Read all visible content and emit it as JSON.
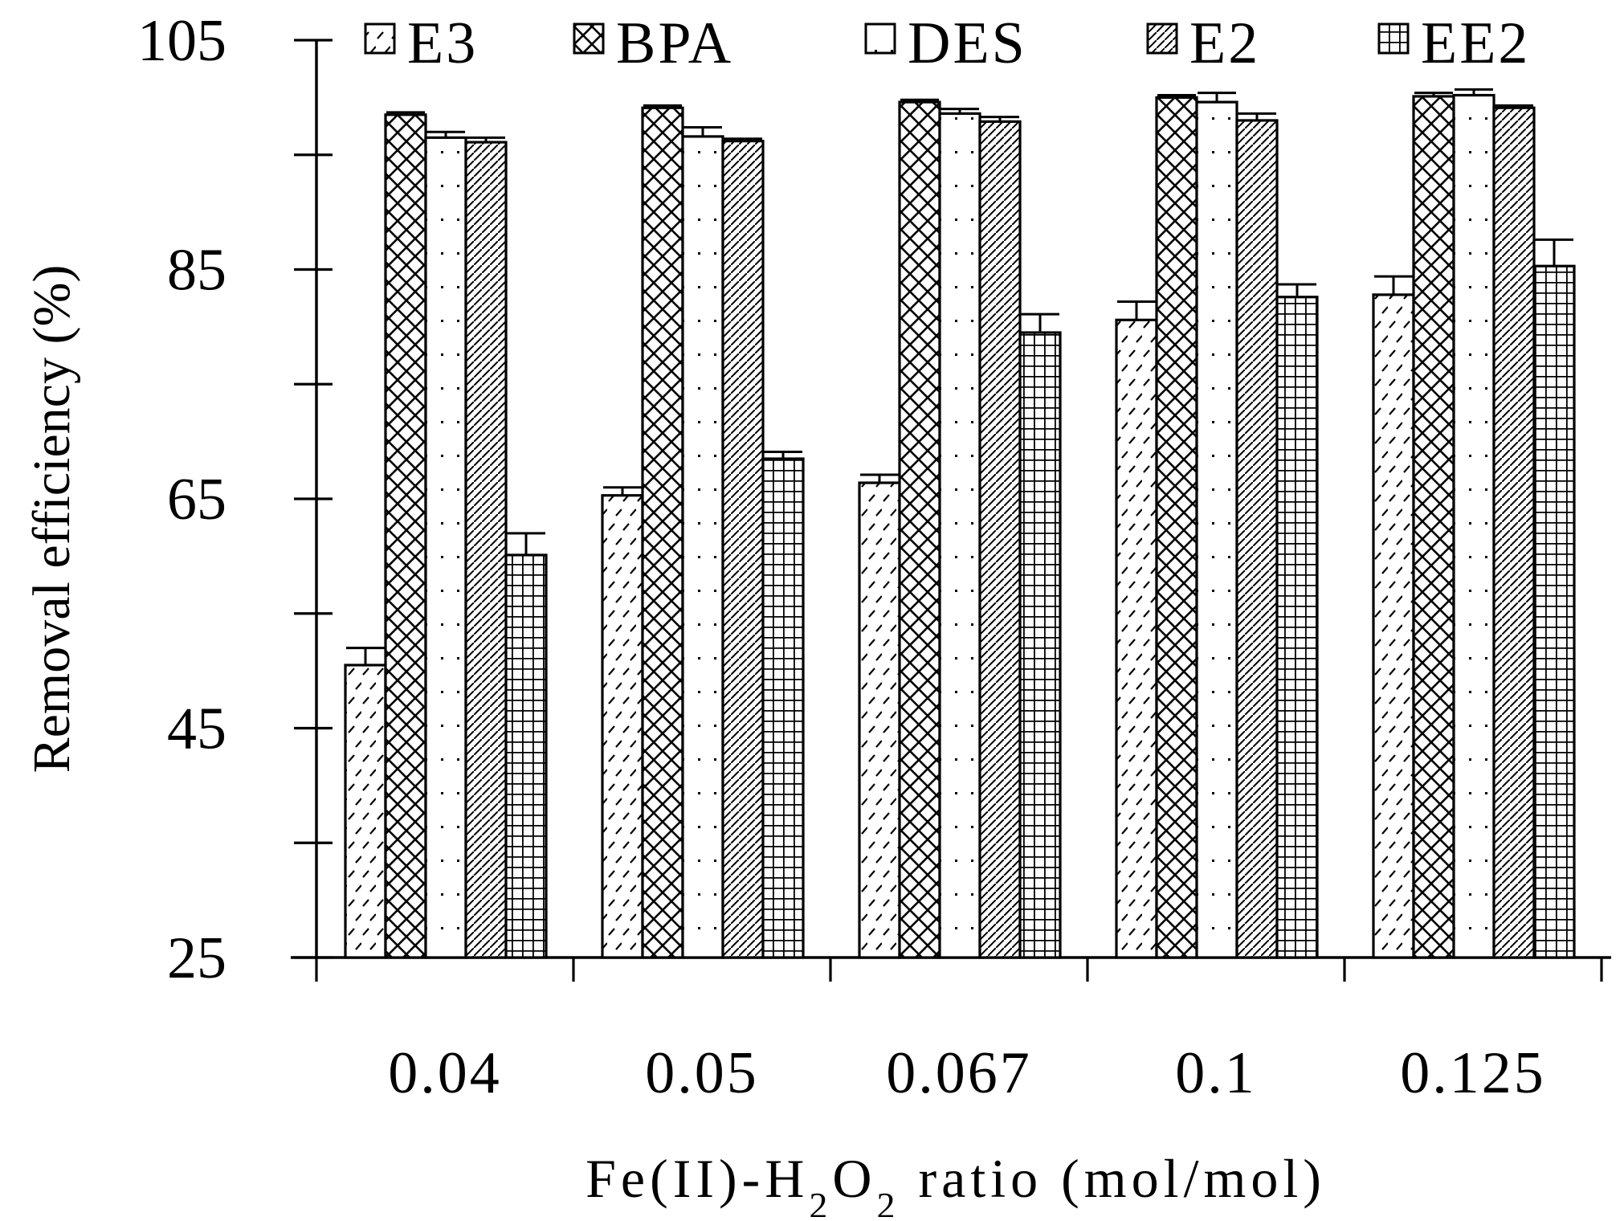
{
  "chart_data": {
    "type": "bar",
    "title": "",
    "categories": [
      "0.04",
      "0.05",
      "0.067",
      "0.1",
      "0.125"
    ],
    "series": [
      {
        "name": "E3",
        "pattern": "dash",
        "values": [
          50.5,
          65.3,
          66.4,
          80.6,
          82.8
        ],
        "errors": [
          1.5,
          0.7,
          0.7,
          1.6,
          1.6
        ]
      },
      {
        "name": "BPA",
        "pattern": "crosshatch",
        "values": [
          98.5,
          99.1,
          99.6,
          100.0,
          100.1
        ],
        "errors": [
          0.2,
          0.2,
          0.2,
          0.2,
          0.3
        ]
      },
      {
        "name": "DES",
        "pattern": "dots",
        "values": [
          96.5,
          96.6,
          98.6,
          99.6,
          100.2
        ],
        "errors": [
          0.5,
          0.8,
          0.4,
          0.8,
          0.5
        ]
      },
      {
        "name": "E2",
        "pattern": "diagonal",
        "values": [
          96.1,
          96.2,
          97.9,
          98.0,
          99.1
        ],
        "errors": [
          0.4,
          0.2,
          0.4,
          0.6,
          0.2
        ]
      },
      {
        "name": "EE2",
        "pattern": "grid",
        "values": [
          60.1,
          68.5,
          79.5,
          82.6,
          85.3
        ],
        "errors": [
          1.9,
          0.6,
          1.6,
          1.1,
          2.3
        ]
      }
    ],
    "ylabel": "Removal efficiency (%)",
    "xlabel_parts": [
      {
        "text": "Fe(II)-H",
        "sub": false
      },
      {
        "text": "2",
        "sub": true
      },
      {
        "text": "O",
        "sub": false
      },
      {
        "text": "2",
        "sub": true
      },
      {
        "text": " ratio (mol/mol)",
        "sub": false
      }
    ],
    "ylim": [
      25,
      105
    ],
    "yticks_labeled": [
      "25",
      "45",
      "65",
      "85",
      "105"
    ],
    "ytick_values": [
      25,
      35,
      45,
      55,
      65,
      75,
      85,
      95,
      105
    ],
    "grid": false,
    "legend_position": "top",
    "colors": {
      "fill": "#ffffff",
      "stroke": "#000000"
    }
  }
}
